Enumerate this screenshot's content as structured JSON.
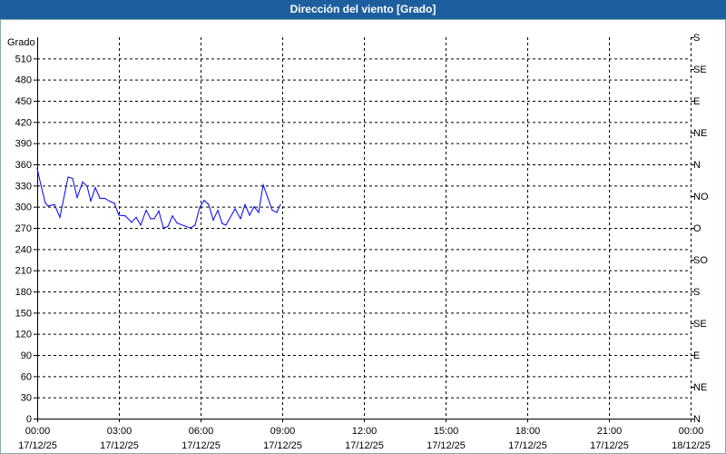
{
  "chart_data": {
    "type": "line",
    "title": "Dirección del viento [Grado]",
    "ylabel": "Grado",
    "ylim": [
      0,
      540
    ],
    "yticks": [
      0,
      30,
      60,
      90,
      120,
      150,
      180,
      210,
      240,
      270,
      300,
      330,
      360,
      390,
      420,
      450,
      480,
      510
    ],
    "right_axis_labels": [
      {
        "value": 540,
        "label": "S"
      },
      {
        "value": 495,
        "label": "SE"
      },
      {
        "value": 450,
        "label": "E"
      },
      {
        "value": 405,
        "label": "NE"
      },
      {
        "value": 360,
        "label": "N"
      },
      {
        "value": 315,
        "label": "NO"
      },
      {
        "value": 270,
        "label": "O"
      },
      {
        "value": 225,
        "label": "SO"
      },
      {
        "value": 180,
        "label": "S"
      },
      {
        "value": 135,
        "label": "SE"
      },
      {
        "value": 90,
        "label": "E"
      },
      {
        "value": 45,
        "label": "NE"
      },
      {
        "value": 0,
        "label": "N"
      }
    ],
    "xlim": [
      "17/12/25 00:00",
      "18/12/25 00:00"
    ],
    "xticks": [
      {
        "time": "00:00",
        "date": "17/12/25"
      },
      {
        "time": "03:00",
        "date": "17/12/25"
      },
      {
        "time": "06:00",
        "date": "17/12/25"
      },
      {
        "time": "09:00",
        "date": "17/12/25"
      },
      {
        "time": "12:00",
        "date": "17/12/25"
      },
      {
        "time": "15:00",
        "date": "17/12/25"
      },
      {
        "time": "18:00",
        "date": "17/12/25"
      },
      {
        "time": "21:00",
        "date": "17/12/25"
      },
      {
        "time": "00:00",
        "date": "18/12/25"
      }
    ],
    "grid": true,
    "series_color": "#0000ff",
    "series": [
      {
        "x": [
          "00:00",
          "00:08",
          "00:18",
          "00:24",
          "00:38",
          "00:50",
          "01:08",
          "01:18",
          "01:28",
          "01:40",
          "01:50",
          "01:58",
          "02:08",
          "02:18",
          "02:28",
          "02:42",
          "02:50",
          "03:00",
          "03:14",
          "03:28",
          "03:38",
          "03:48",
          "04:00",
          "04:10",
          "04:18",
          "04:28",
          "04:38",
          "04:48",
          "04:58",
          "05:08",
          "05:28",
          "05:38",
          "05:48",
          "05:58",
          "06:08",
          "06:18",
          "06:28",
          "06:38",
          "06:48",
          "06:56",
          "07:16",
          "07:28",
          "07:38",
          "07:48",
          "07:58",
          "08:08",
          "08:18",
          "08:28",
          "08:38",
          "08:48",
          "08:56"
        ],
        "values": [
          354,
          331,
          305,
          301,
          303,
          285,
          342,
          340,
          313,
          335,
          329,
          308,
          327,
          312,
          312,
          307,
          305,
          288,
          287,
          278,
          285,
          274,
          295,
          283,
          283,
          294,
          270,
          272,
          287,
          277,
          272,
          270,
          274,
          299,
          309,
          303,
          281,
          295,
          276,
          274,
          297,
          283,
          303,
          288,
          300,
          292,
          331,
          313,
          295,
          292,
          303
        ]
      }
    ]
  }
}
